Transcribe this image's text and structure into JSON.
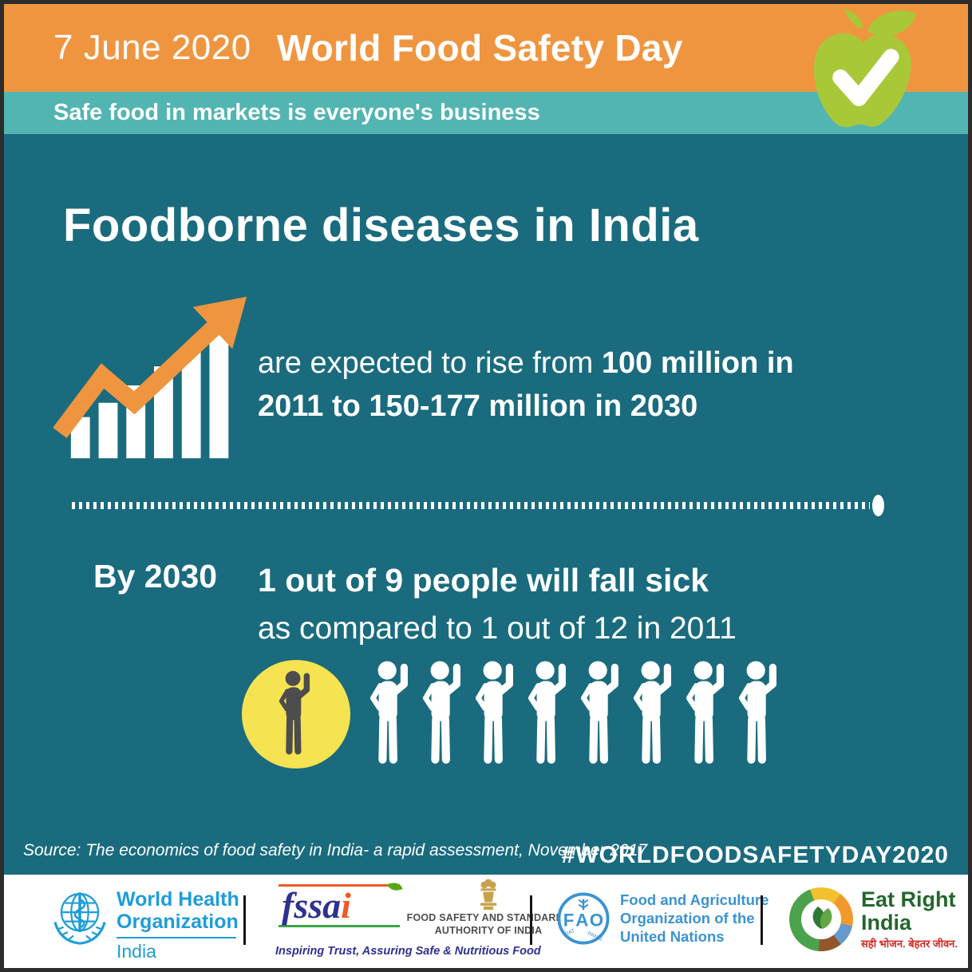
{
  "colors": {
    "header_orange": "#F0953F",
    "tagline_teal": "#53B5B2",
    "body_teal": "#1A6B7E",
    "highlight_yellow": "#F6E351",
    "highlighted_person_gray": "#4D4D4D",
    "apple_green": "#A9C838",
    "who_blue": "#1F9CD8",
    "fao_blue": "#3B93D1",
    "fssai_navy": "#2E3192",
    "fssai_orange": "#F15A22",
    "fssai_leaf_green": "#58A618",
    "eat_right_green": "#24662C",
    "eat_right_red": "#CE2B24",
    "text_white": "#FFFFFF"
  },
  "header": {
    "date": "7 June 2020",
    "title": "World Food Safety Day",
    "tagline": "Safe food in markets is everyone's business"
  },
  "main": {
    "heading": "Foodborne diseases in India",
    "trend_statement": {
      "prefix": "are expected to rise from",
      "bold": "100 million in 2011 to 150-177 million in 2030"
    },
    "projection": {
      "label": "By 2030",
      "line1": "1 out of 9 people will fall sick",
      "line2": "as compared to 1 out of 12 in 2011"
    },
    "people_total": 9,
    "people_highlighted": 1,
    "source": "Source: The economics of food safety in India- a rapid assessment, November 2017",
    "hashtag": "#WORLDFOODSAFETYDAY2020"
  },
  "footer": {
    "who": {
      "name_line1": "World Health",
      "name_line2": "Organization",
      "region": "India"
    },
    "fssai": {
      "wordmark": "fssa",
      "wordmark_i": "i",
      "authority_line1": "FOOD SAFETY AND STANDARDS",
      "authority_line2": "AUTHORITY OF INDIA",
      "tagline": "Inspiring Trust, Assuring Safe & Nutritious Food"
    },
    "fao": {
      "abbr_f": "F",
      "abbr_a": "A",
      "abbr_o": "O",
      "motto_left": "FIAT",
      "motto_right": "PANIS",
      "name_line1": "Food and Agriculture",
      "name_line2": "Organization of the",
      "name_line3": "United Nations"
    },
    "eat_right": {
      "name_line1": "Eat Right",
      "name_line2": "India",
      "tagline_hindi": "सही भोजन. बेहतर जीवन."
    }
  }
}
